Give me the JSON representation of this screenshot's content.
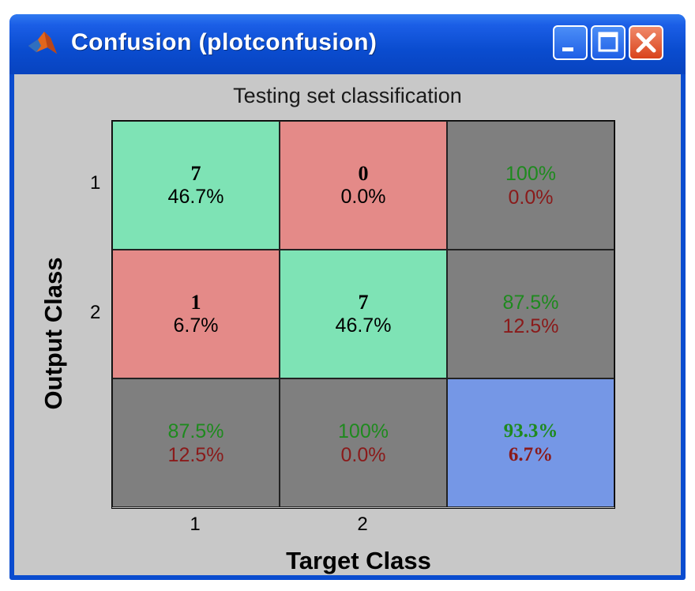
{
  "window": {
    "title": "Confusion (plotconfusion)",
    "buttons": {
      "minimize": "minimize",
      "maximize": "maximize",
      "close": "close"
    }
  },
  "colors": {
    "titlebar": "#0a4ccf",
    "correct_cell": "#7ee3b5",
    "incorrect_cell": "#e48a88",
    "summary_cell": "#7f7f7f",
    "overall_cell": "#7597e6",
    "good_text": "#1e8a1e",
    "bad_text": "#8a1a1a",
    "background": "#c8c8c8"
  },
  "chart_data": {
    "type": "heatmap",
    "title": "Testing set classification",
    "xlabel": "Target Class",
    "ylabel": "Output Class",
    "x_ticks": [
      "1",
      "2"
    ],
    "y_ticks": [
      "1",
      "2"
    ],
    "matrix": {
      "r1c1": {
        "count": "7",
        "pct": "46.7%"
      },
      "r1c2": {
        "count": "0",
        "pct": "0.0%"
      },
      "r1c3": {
        "good": "100%",
        "bad": "0.0%"
      },
      "r2c1": {
        "count": "1",
        "pct": "6.7%"
      },
      "r2c2": {
        "count": "7",
        "pct": "46.7%"
      },
      "r2c3": {
        "good": "87.5%",
        "bad": "12.5%"
      },
      "r3c1": {
        "good": "87.5%",
        "bad": "12.5%"
      },
      "r3c2": {
        "good": "100%",
        "bad": "0.0%"
      },
      "r3c3": {
        "good": "93.3%",
        "bad": "6.7%"
      }
    },
    "counts": [
      [
        7,
        0
      ],
      [
        1,
        7
      ]
    ]
  }
}
